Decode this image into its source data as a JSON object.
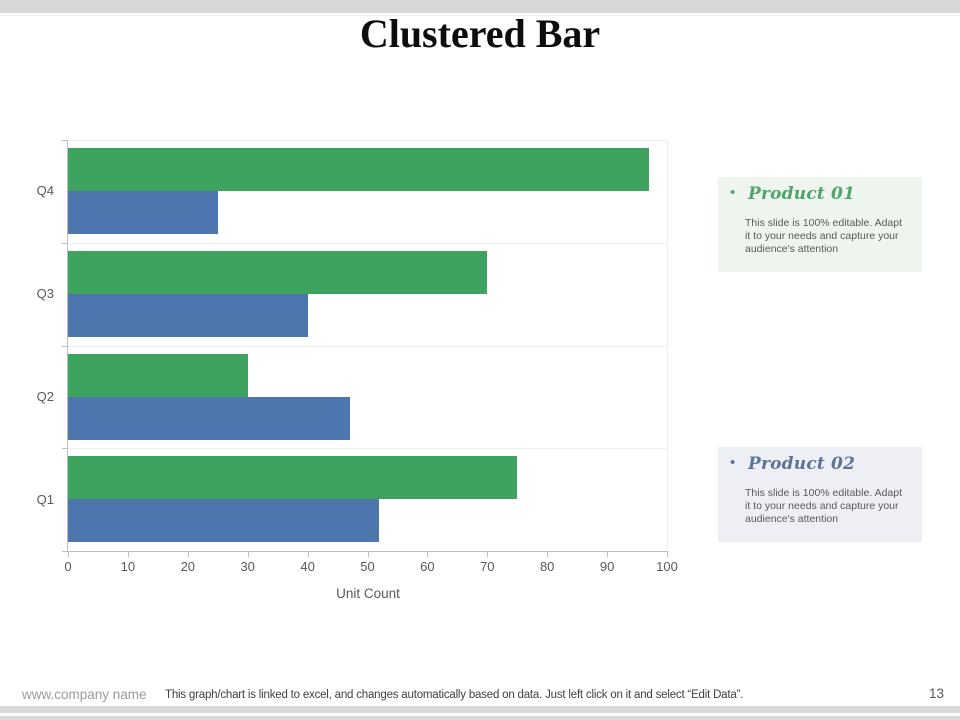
{
  "slide_title": "Clustered Bar",
  "chart_data": {
    "type": "bar",
    "orientation": "horizontal",
    "title": "",
    "categories": [
      "Q1",
      "Q2",
      "Q3",
      "Q4"
    ],
    "series": [
      {
        "name": "Product 01",
        "color": "#3EA35F",
        "values": [
          75,
          30,
          70,
          97
        ]
      },
      {
        "name": "Product 02",
        "color": "#4E76AE",
        "values": [
          52,
          47,
          40,
          25
        ]
      }
    ],
    "xlabel": "Unit Count",
    "xlim": [
      0,
      100
    ],
    "xticks": [
      0,
      10,
      20,
      30,
      40,
      50,
      60,
      70,
      80,
      90,
      100
    ],
    "grid": "category-boundary-lines",
    "legend_position": "none",
    "layout_note": "Product 01 (green) bar drawn above Product 02 (blue) in each cluster; categories run Q1 at bottom to Q4 at top"
  },
  "callouts": [
    {
      "title": "Product 01",
      "bullet": "•",
      "body": "This slide is 100% editable.  Adapt\nit to your needs and capture your\naudience's attention",
      "accent": "#4FA36B",
      "bg": "#EDF5EE"
    },
    {
      "title": "Product 02",
      "bullet": "•",
      "body": "This slide is 100% editable.  Adapt\nit to your needs and capture your\naudience's attention",
      "accent": "#5B7599",
      "bg": "#EDEFF5"
    }
  ],
  "footer": {
    "company": "www.company name",
    "note": "This graph/chart is linked to excel, and changes automatically based on data. Just left click on it and select “Edit Data”.",
    "page_number": "13"
  },
  "colors": {
    "axis": "#bfbfbf",
    "gridline": "#efefea",
    "tick_label": "#595959",
    "top_bar": "#d8d8d8",
    "bottom_strip": "#d9d9d9"
  }
}
